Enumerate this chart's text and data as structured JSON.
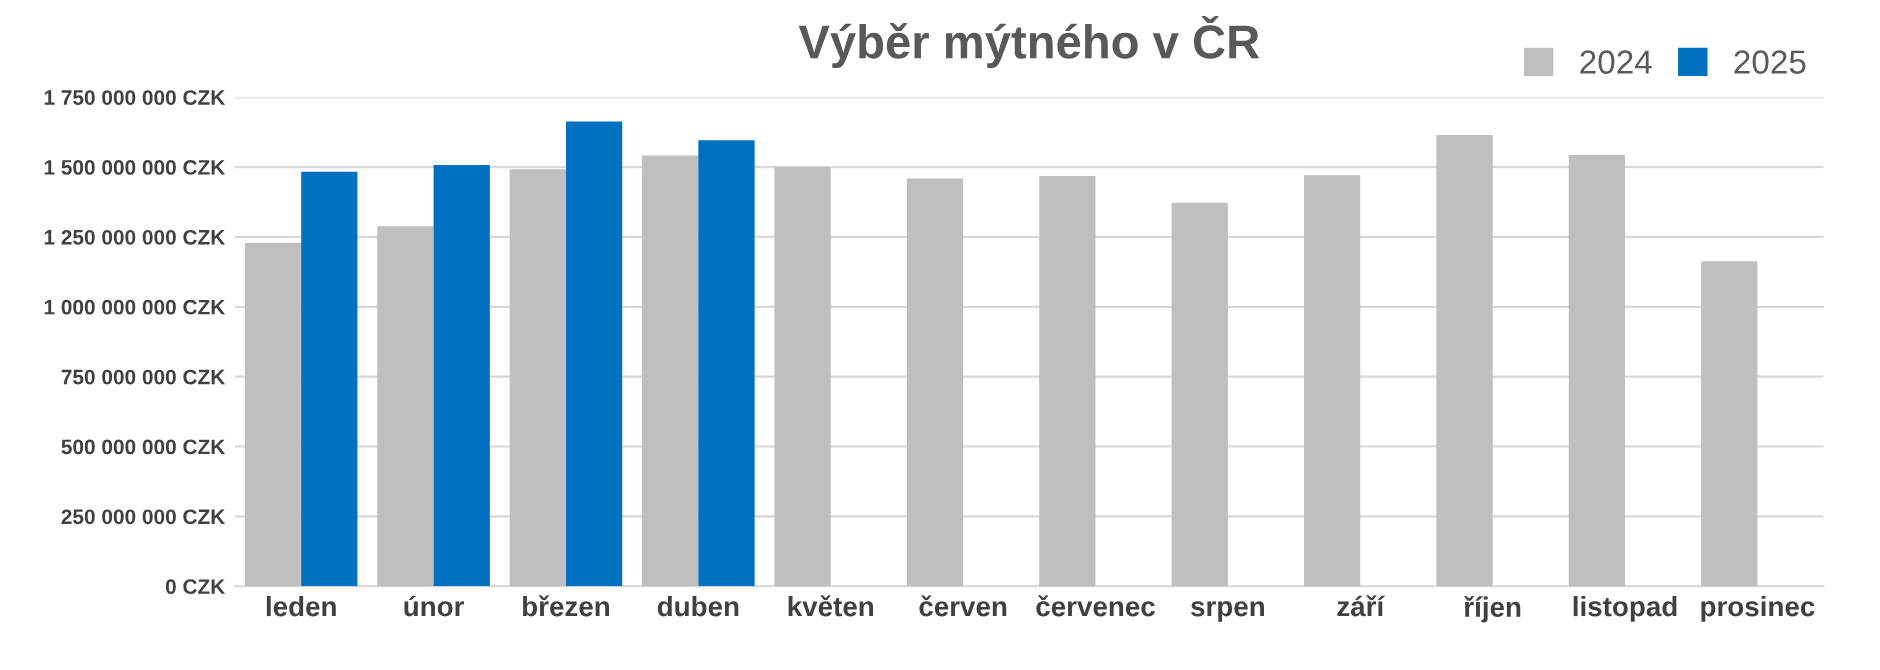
{
  "chart_data": {
    "type": "bar",
    "title": "Výběr mýtného v ČR",
    "categories": [
      "leden",
      "únor",
      "březen",
      "duben",
      "květen",
      "červen",
      "červenec",
      "srpen",
      "září",
      "říjen",
      "listopad",
      "prosinec"
    ],
    "series": [
      {
        "name": "2024",
        "color": "#bfbfbf",
        "values": [
          1228000000,
          1288000000,
          1492000000,
          1541000000,
          1500000000,
          1459000000,
          1468000000,
          1372000000,
          1471000000,
          1615000000,
          1543000000,
          1163000000
        ]
      },
      {
        "name": "2025",
        "color": "#0070c0",
        "values": [
          1483000000,
          1507000000,
          1663000000,
          1596000000,
          null,
          null,
          null,
          null,
          null,
          null,
          null,
          null
        ]
      }
    ],
    "ylim": [
      0,
      1750000000
    ],
    "yticks": [
      {
        "value": 0,
        "label": "0 CZK"
      },
      {
        "value": 250000000,
        "label": "250 000 000 CZK"
      },
      {
        "value": 500000000,
        "label": "500 000 000 CZK"
      },
      {
        "value": 750000000,
        "label": "750 000 000 CZK"
      },
      {
        "value": 1000000000,
        "label": "1 000 000 000 CZK"
      },
      {
        "value": 1250000000,
        "label": "1 250 000 000 CZK"
      },
      {
        "value": 1500000000,
        "label": "1 500 000 000 CZK"
      },
      {
        "value": 1750000000,
        "label": "1 750 000 000 CZK"
      }
    ],
    "grid": "y",
    "legend": "top right"
  }
}
